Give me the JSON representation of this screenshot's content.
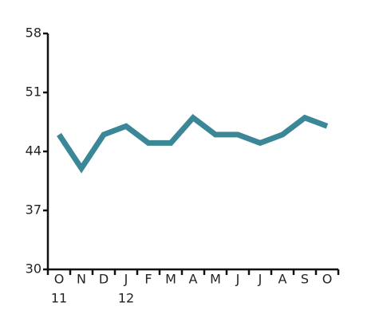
{
  "chart_data": {
    "type": "line",
    "categories": [
      "O",
      "N",
      "D",
      "J",
      "F",
      "M",
      "A",
      "M",
      "J",
      "J",
      "A",
      "S",
      "O"
    ],
    "year_labels": [
      "11",
      null,
      null,
      "12",
      null,
      null,
      null,
      null,
      null,
      null,
      null,
      null,
      null
    ],
    "values": [
      46,
      42,
      46,
      47,
      45,
      45,
      48,
      46,
      46,
      45,
      46,
      48,
      47
    ],
    "color": "#3b8797",
    "ylim": [
      30,
      58
    ],
    "yticks": [
      30,
      37,
      44,
      51,
      58
    ]
  }
}
